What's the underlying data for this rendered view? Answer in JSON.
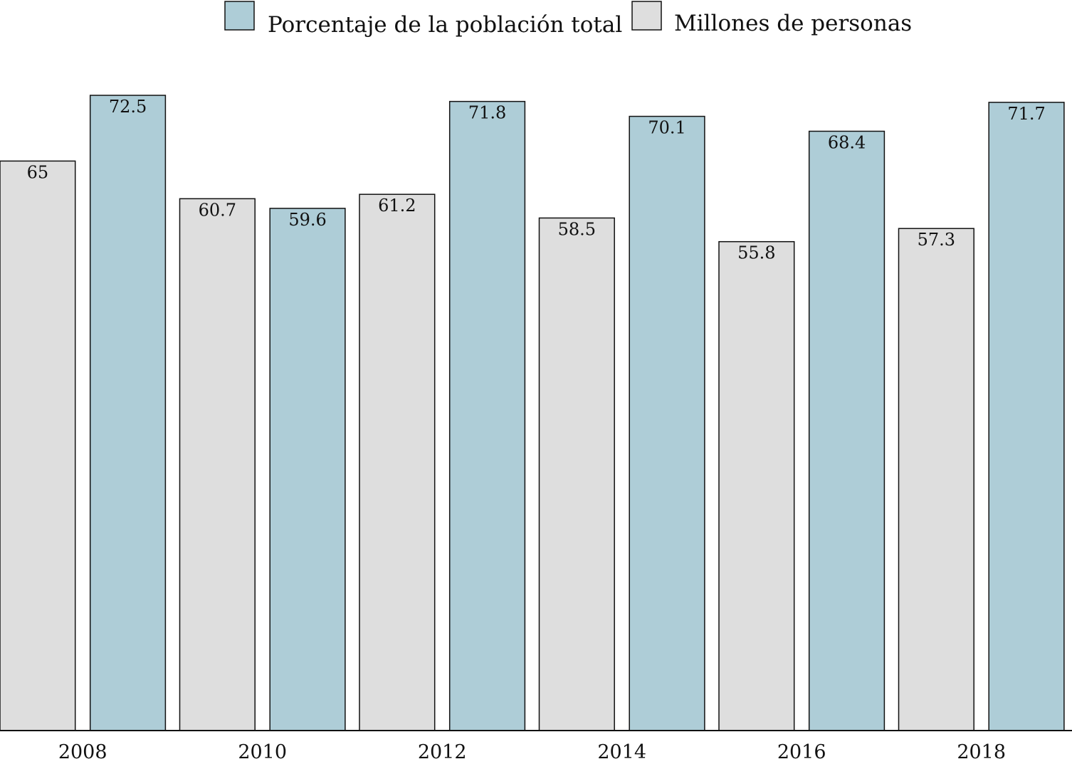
{
  "chart_data": {
    "type": "bar",
    "title": "",
    "xlabel": "",
    "ylabel": "",
    "ylim": [
      0,
      72.5
    ],
    "grid": false,
    "legend_position": "top",
    "x_ticks": [
      "2008",
      "2010",
      "2012",
      "2014",
      "2016",
      "2018"
    ],
    "series": [
      {
        "name": "Porcentaje de la población total",
        "color": "#aecdd7",
        "values": [
          72.5,
          59.6,
          71.8,
          70.1,
          68.4,
          71.7
        ],
        "labels": [
          "72.5",
          "59.6",
          "71.8",
          "70.1",
          "68.4",
          "71.7"
        ]
      },
      {
        "name": "Millones de personas",
        "color": "#dedede",
        "values": [
          65,
          60.7,
          61.2,
          58.5,
          55.8,
          57.3
        ],
        "labels": [
          "65",
          "60.7",
          "61.2",
          "58.5",
          "55.8",
          "57.3"
        ]
      }
    ],
    "bar_order": [
      {
        "series": 1,
        "index": 0
      },
      {
        "series": 0,
        "index": 0
      },
      {
        "series": 1,
        "index": 1
      },
      {
        "series": 0,
        "index": 1
      },
      {
        "series": 1,
        "index": 2
      },
      {
        "series": 0,
        "index": 2
      },
      {
        "series": 1,
        "index": 3
      },
      {
        "series": 0,
        "index": 3
      },
      {
        "series": 1,
        "index": 4
      },
      {
        "series": 0,
        "index": 4
      },
      {
        "series": 1,
        "index": 5
      },
      {
        "series": 0,
        "index": 5
      }
    ]
  }
}
